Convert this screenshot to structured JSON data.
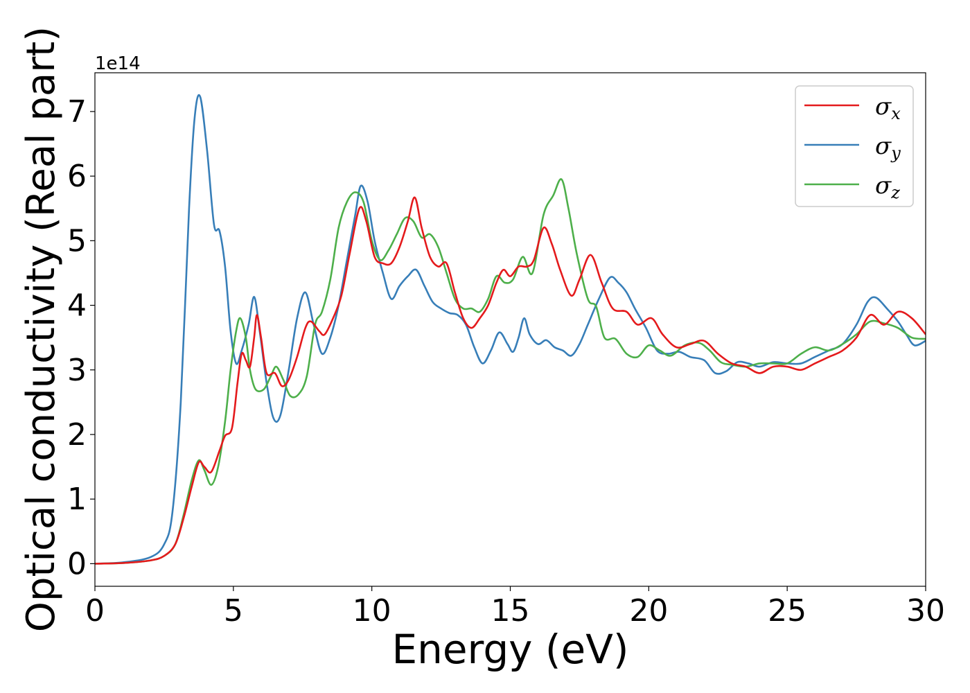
{
  "chart_data": {
    "type": "line",
    "title": "",
    "xlabel": "Energy (eV)",
    "ylabel": "Optical conductivity (Real part)",
    "y_scale_note": "1e14",
    "y_multiplier": 100000000000000.0,
    "xlim": [
      0,
      30
    ],
    "ylim": [
      -0.35,
      7.6
    ],
    "x_ticks": [
      0,
      5,
      10,
      15,
      20,
      25,
      30
    ],
    "y_ticks": [
      0,
      1,
      2,
      3,
      4,
      5,
      6,
      7
    ],
    "grid": false,
    "legend_position": "top-right",
    "legend": [
      {
        "symbol": "σ",
        "subscript": "x",
        "color": "#e41a1c"
      },
      {
        "symbol": "σ",
        "subscript": "y",
        "color": "#377eb8"
      },
      {
        "symbol": "σ",
        "subscript": "z",
        "color": "#4daf4a"
      }
    ],
    "series": [
      {
        "color": "#e41a1c",
        "points": [
          [
            0,
            0
          ],
          [
            1,
            0.01
          ],
          [
            2,
            0.05
          ],
          [
            2.5,
            0.12
          ],
          [
            2.9,
            0.3
          ],
          [
            3.2,
            0.7
          ],
          [
            3.5,
            1.2
          ],
          [
            3.75,
            1.57
          ],
          [
            3.95,
            1.5
          ],
          [
            4.2,
            1.42
          ],
          [
            4.5,
            1.75
          ],
          [
            4.7,
            1.98
          ],
          [
            4.95,
            2.1
          ],
          [
            5.15,
            2.8
          ],
          [
            5.3,
            3.25
          ],
          [
            5.45,
            3.15
          ],
          [
            5.6,
            3.05
          ],
          [
            5.75,
            3.5
          ],
          [
            5.85,
            3.85
          ],
          [
            6.0,
            3.5
          ],
          [
            6.2,
            2.95
          ],
          [
            6.5,
            2.95
          ],
          [
            6.75,
            2.75
          ],
          [
            7.0,
            2.85
          ],
          [
            7.3,
            3.2
          ],
          [
            7.6,
            3.65
          ],
          [
            7.8,
            3.75
          ],
          [
            8.1,
            3.6
          ],
          [
            8.3,
            3.55
          ],
          [
            8.6,
            3.8
          ],
          [
            8.9,
            4.15
          ],
          [
            9.2,
            4.8
          ],
          [
            9.55,
            5.5
          ],
          [
            9.8,
            5.3
          ],
          [
            10.1,
            4.75
          ],
          [
            10.4,
            4.65
          ],
          [
            10.7,
            4.65
          ],
          [
            11.0,
            4.9
          ],
          [
            11.3,
            5.3
          ],
          [
            11.55,
            5.67
          ],
          [
            11.8,
            5.2
          ],
          [
            12.1,
            4.75
          ],
          [
            12.4,
            4.6
          ],
          [
            12.7,
            4.65
          ],
          [
            13.0,
            4.2
          ],
          [
            13.3,
            3.8
          ],
          [
            13.6,
            3.65
          ],
          [
            13.9,
            3.8
          ],
          [
            14.2,
            4.0
          ],
          [
            14.5,
            4.35
          ],
          [
            14.75,
            4.55
          ],
          [
            15.0,
            4.45
          ],
          [
            15.3,
            4.6
          ],
          [
            15.6,
            4.6
          ],
          [
            15.85,
            4.7
          ],
          [
            16.2,
            5.2
          ],
          [
            16.5,
            4.95
          ],
          [
            16.8,
            4.55
          ],
          [
            17.2,
            4.15
          ],
          [
            17.5,
            4.4
          ],
          [
            17.9,
            4.78
          ],
          [
            18.3,
            4.35
          ],
          [
            18.7,
            3.95
          ],
          [
            19.2,
            3.9
          ],
          [
            19.6,
            3.7
          ],
          [
            20.1,
            3.8
          ],
          [
            20.5,
            3.55
          ],
          [
            21.0,
            3.35
          ],
          [
            21.5,
            3.4
          ],
          [
            22.0,
            3.45
          ],
          [
            22.5,
            3.25
          ],
          [
            23.0,
            3.1
          ],
          [
            23.5,
            3.05
          ],
          [
            24.0,
            2.95
          ],
          [
            24.5,
            3.05
          ],
          [
            25.0,
            3.05
          ],
          [
            25.5,
            3.0
          ],
          [
            26.0,
            3.1
          ],
          [
            26.5,
            3.2
          ],
          [
            27.0,
            3.3
          ],
          [
            27.5,
            3.5
          ],
          [
            28.0,
            3.85
          ],
          [
            28.5,
            3.7
          ],
          [
            29.0,
            3.9
          ],
          [
            29.5,
            3.8
          ],
          [
            30.0,
            3.55
          ]
        ]
      },
      {
        "color": "#377eb8",
        "points": [
          [
            0,
            0
          ],
          [
            1,
            0.02
          ],
          [
            2,
            0.1
          ],
          [
            2.5,
            0.3
          ],
          [
            2.8,
            0.8
          ],
          [
            3.1,
            2.5
          ],
          [
            3.4,
            5.5
          ],
          [
            3.6,
            6.9
          ],
          [
            3.8,
            7.23
          ],
          [
            4.05,
            6.4
          ],
          [
            4.3,
            5.25
          ],
          [
            4.5,
            5.15
          ],
          [
            4.7,
            4.6
          ],
          [
            4.9,
            3.6
          ],
          [
            5.1,
            3.1
          ],
          [
            5.3,
            3.3
          ],
          [
            5.55,
            3.7
          ],
          [
            5.75,
            4.13
          ],
          [
            5.95,
            3.6
          ],
          [
            6.2,
            2.8
          ],
          [
            6.45,
            2.25
          ],
          [
            6.7,
            2.3
          ],
          [
            7.0,
            3.0
          ],
          [
            7.3,
            3.8
          ],
          [
            7.6,
            4.2
          ],
          [
            7.9,
            3.7
          ],
          [
            8.2,
            3.25
          ],
          [
            8.5,
            3.5
          ],
          [
            8.8,
            4.0
          ],
          [
            9.1,
            4.7
          ],
          [
            9.4,
            5.4
          ],
          [
            9.6,
            5.85
          ],
          [
            9.85,
            5.6
          ],
          [
            10.1,
            5.0
          ],
          [
            10.4,
            4.5
          ],
          [
            10.7,
            4.1
          ],
          [
            11.0,
            4.3
          ],
          [
            11.3,
            4.45
          ],
          [
            11.6,
            4.55
          ],
          [
            11.9,
            4.3
          ],
          [
            12.2,
            4.05
          ],
          [
            12.5,
            3.95
          ],
          [
            12.8,
            3.88
          ],
          [
            13.1,
            3.85
          ],
          [
            13.4,
            3.7
          ],
          [
            13.7,
            3.35
          ],
          [
            14.0,
            3.1
          ],
          [
            14.3,
            3.3
          ],
          [
            14.6,
            3.58
          ],
          [
            14.9,
            3.4
          ],
          [
            15.1,
            3.28
          ],
          [
            15.3,
            3.5
          ],
          [
            15.5,
            3.8
          ],
          [
            15.7,
            3.55
          ],
          [
            16.0,
            3.4
          ],
          [
            16.3,
            3.46
          ],
          [
            16.6,
            3.35
          ],
          [
            16.9,
            3.3
          ],
          [
            17.2,
            3.22
          ],
          [
            17.5,
            3.4
          ],
          [
            17.8,
            3.7
          ],
          [
            18.2,
            4.1
          ],
          [
            18.6,
            4.43
          ],
          [
            18.9,
            4.35
          ],
          [
            19.2,
            4.2
          ],
          [
            19.5,
            3.95
          ],
          [
            19.9,
            3.65
          ],
          [
            20.3,
            3.3
          ],
          [
            20.7,
            3.25
          ],
          [
            21.1,
            3.28
          ],
          [
            21.5,
            3.2
          ],
          [
            22.0,
            3.15
          ],
          [
            22.4,
            2.95
          ],
          [
            22.8,
            2.98
          ],
          [
            23.2,
            3.12
          ],
          [
            23.6,
            3.1
          ],
          [
            24.0,
            3.05
          ],
          [
            24.5,
            3.12
          ],
          [
            25.0,
            3.1
          ],
          [
            25.5,
            3.1
          ],
          [
            26.0,
            3.2
          ],
          [
            26.5,
            3.3
          ],
          [
            27.0,
            3.4
          ],
          [
            27.5,
            3.7
          ],
          [
            27.9,
            4.05
          ],
          [
            28.2,
            4.12
          ],
          [
            28.6,
            3.95
          ],
          [
            29.0,
            3.75
          ],
          [
            29.3,
            3.55
          ],
          [
            29.6,
            3.38
          ],
          [
            30.0,
            3.45
          ]
        ]
      },
      {
        "color": "#4daf4a",
        "points": [
          [
            0,
            0
          ],
          [
            1,
            0.01
          ],
          [
            2,
            0.05
          ],
          [
            2.5,
            0.12
          ],
          [
            2.9,
            0.3
          ],
          [
            3.2,
            0.75
          ],
          [
            3.5,
            1.3
          ],
          [
            3.75,
            1.6
          ],
          [
            3.95,
            1.45
          ],
          [
            4.2,
            1.22
          ],
          [
            4.45,
            1.5
          ],
          [
            4.7,
            2.2
          ],
          [
            4.9,
            3.0
          ],
          [
            5.1,
            3.6
          ],
          [
            5.25,
            3.8
          ],
          [
            5.45,
            3.5
          ],
          [
            5.6,
            3.0
          ],
          [
            5.8,
            2.7
          ],
          [
            6.1,
            2.7
          ],
          [
            6.35,
            2.9
          ],
          [
            6.55,
            3.05
          ],
          [
            6.8,
            2.85
          ],
          [
            7.05,
            2.6
          ],
          [
            7.35,
            2.62
          ],
          [
            7.65,
            2.9
          ],
          [
            7.95,
            3.7
          ],
          [
            8.2,
            3.9
          ],
          [
            8.5,
            4.4
          ],
          [
            8.8,
            5.2
          ],
          [
            9.1,
            5.6
          ],
          [
            9.4,
            5.75
          ],
          [
            9.7,
            5.6
          ],
          [
            10.0,
            5.0
          ],
          [
            10.3,
            4.7
          ],
          [
            10.6,
            4.85
          ],
          [
            10.9,
            5.1
          ],
          [
            11.2,
            5.35
          ],
          [
            11.5,
            5.3
          ],
          [
            11.8,
            5.05
          ],
          [
            12.1,
            5.1
          ],
          [
            12.4,
            4.9
          ],
          [
            12.7,
            4.5
          ],
          [
            13.0,
            4.1
          ],
          [
            13.3,
            3.95
          ],
          [
            13.6,
            3.95
          ],
          [
            13.9,
            3.9
          ],
          [
            14.2,
            4.1
          ],
          [
            14.5,
            4.45
          ],
          [
            14.8,
            4.35
          ],
          [
            15.1,
            4.4
          ],
          [
            15.45,
            4.75
          ],
          [
            15.8,
            4.5
          ],
          [
            16.2,
            5.4
          ],
          [
            16.55,
            5.7
          ],
          [
            16.85,
            5.95
          ],
          [
            17.1,
            5.5
          ],
          [
            17.4,
            4.8
          ],
          [
            17.8,
            4.1
          ],
          [
            18.1,
            3.98
          ],
          [
            18.4,
            3.5
          ],
          [
            18.8,
            3.48
          ],
          [
            19.2,
            3.25
          ],
          [
            19.6,
            3.2
          ],
          [
            20.0,
            3.38
          ],
          [
            20.4,
            3.3
          ],
          [
            20.8,
            3.22
          ],
          [
            21.3,
            3.38
          ],
          [
            21.8,
            3.42
          ],
          [
            22.2,
            3.3
          ],
          [
            22.6,
            3.12
          ],
          [
            23.0,
            3.08
          ],
          [
            23.5,
            3.05
          ],
          [
            24.0,
            3.1
          ],
          [
            24.5,
            3.1
          ],
          [
            25.0,
            3.1
          ],
          [
            25.5,
            3.25
          ],
          [
            26.0,
            3.35
          ],
          [
            26.5,
            3.3
          ],
          [
            27.0,
            3.4
          ],
          [
            27.5,
            3.55
          ],
          [
            28.0,
            3.75
          ],
          [
            28.5,
            3.72
          ],
          [
            29.0,
            3.65
          ],
          [
            29.5,
            3.5
          ],
          [
            30.0,
            3.48
          ]
        ]
      }
    ]
  }
}
